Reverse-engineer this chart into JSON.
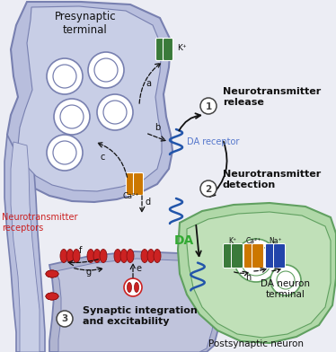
{
  "bg_color": "#ecedf4",
  "pre_fill": "#b8bedd",
  "pre_fill2": "#c8cee6",
  "pre_border": "#7880b0",
  "da_fill": "#b0d8a8",
  "da_fill2": "#c0e0b8",
  "da_border": "#60a060",
  "post_fill": "#b0b4d0",
  "post_fill2": "#c0c4dc",
  "post_border": "#7880b0",
  "color_k": "#3a7a3a",
  "color_ca": "#cc7700",
  "color_na": "#2244aa",
  "color_red": "#cc2222",
  "color_red_dark": "#881111",
  "color_blue_receptor": "#2255aa",
  "color_da_label": "#33aa33",
  "color_nt_label": "#cc2222",
  "color_black": "#111111",
  "color_gray": "#444444",
  "color_white": "#ffffff",
  "label_presynaptic": "Presynaptic\nterminal",
  "label_da_neuron": "DA neuron\nterminal",
  "label_postsynaptic": "Postsynaptic neuron",
  "label_da_receptor": "DA receptor",
  "label_nt_receptors": "Neurotransmitter\nreceptors",
  "label_da": "DA",
  "label_k": "K⁺",
  "label_ca": "Ca²⁺",
  "label_na": "Na⁺",
  "label_1": "Neurotransmitter\nrelease",
  "label_2": "Neurotransmitter\ndetection",
  "label_3": "Synaptic integration\nand excitability"
}
